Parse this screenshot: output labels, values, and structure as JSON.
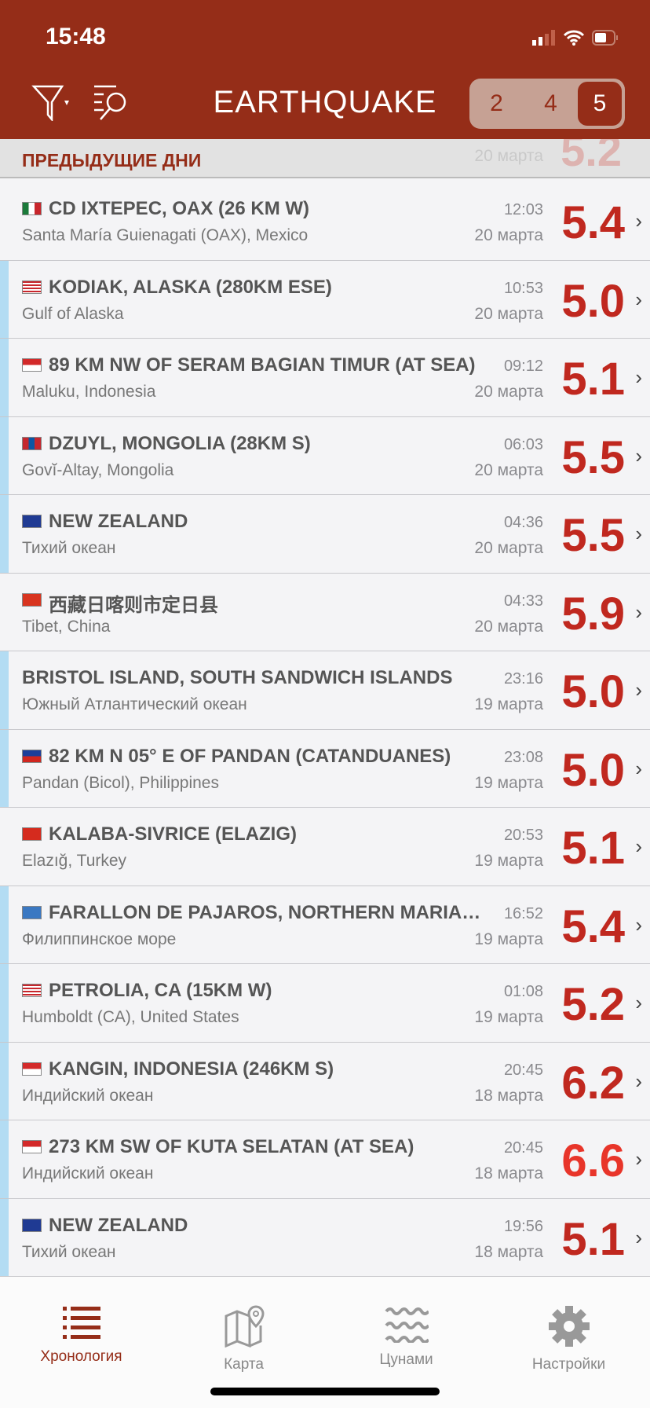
{
  "status_bar": {
    "time": "15:48"
  },
  "header": {
    "title": "EARTHQUAKE",
    "segments": [
      "2",
      "4",
      "5"
    ],
    "selected_segment": "5",
    "icons": [
      "filter-icon",
      "search-list-icon"
    ]
  },
  "section": {
    "title": "ПРЕДЫДУЩИЕ ДНИ",
    "ghost_date": "20 марта",
    "ghost_mag": "5.2"
  },
  "colors": {
    "brand": "#952d18",
    "magnitude": "#c0281f",
    "magnitude_strong": "#e8352a",
    "marker": "#b3dcf3"
  },
  "rows": [
    {
      "flag": "mx",
      "place": "CD IXTEPEC, OAX (26 KM W)",
      "region": "Santa María Guienagati (OAX), Mexico",
      "time": "12:03",
      "date": "20 марта",
      "mag": "5.4",
      "marked": false
    },
    {
      "flag": "us",
      "place": "KODIAK, ALASKA (280KM ESE)",
      "region": "Gulf of Alaska",
      "time": "10:53",
      "date": "20 марта",
      "mag": "5.0",
      "marked": true
    },
    {
      "flag": "id",
      "place": "89 KM NW OF SERAM BAGIAN TIMUR (AT SEA)",
      "region": "Maluku, Indonesia",
      "time": "09:12",
      "date": "20 марта",
      "mag": "5.1",
      "marked": true
    },
    {
      "flag": "mn",
      "place": "DZUYL, MONGOLIA (28KM S)",
      "region": "Govĭ-Altay, Mongolia",
      "time": "06:03",
      "date": "20 марта",
      "mag": "5.5",
      "marked": true
    },
    {
      "flag": "nz",
      "place": "NEW ZEALAND",
      "region": "Тихий океан",
      "time": "04:36",
      "date": "20 марта",
      "mag": "5.5",
      "marked": true
    },
    {
      "flag": "cn",
      "place": "西藏日喀则市定日县",
      "region": "Tibet, China",
      "time": "04:33",
      "date": "20 марта",
      "mag": "5.9",
      "marked": false
    },
    {
      "flag": "",
      "place": "BRISTOL ISLAND, SOUTH SANDWICH ISLANDS",
      "region": "Южный Атлантический океан",
      "time": "23:16",
      "date": "19 марта",
      "mag": "5.0",
      "marked": true
    },
    {
      "flag": "ph",
      "place": "82 KM N 05° E OF PANDAN (CATANDUANES)",
      "region": "Pandan (Bicol), Philippines",
      "time": "23:08",
      "date": "19 марта",
      "mag": "5.0",
      "marked": true
    },
    {
      "flag": "tr",
      "place": "KALABA-SIVRICE (ELAZIG)",
      "region": "Elazığ, Turkey",
      "time": "20:53",
      "date": "19 марта",
      "mag": "5.1",
      "marked": false
    },
    {
      "flag": "mp",
      "place": "FARALLON DE PAJAROS, NORTHERN MARIANA ISLANDS",
      "region": "Филиппинское море",
      "time": "16:52",
      "date": "19 марта",
      "mag": "5.4",
      "marked": true
    },
    {
      "flag": "us",
      "place": "PETROLIA, CA (15KM W)",
      "region": "Humboldt (CA), United States",
      "time": "01:08",
      "date": "19 марта",
      "mag": "5.2",
      "marked": true
    },
    {
      "flag": "id",
      "place": "KANGIN, INDONESIA (246KM S)",
      "region": "Индийский океан",
      "time": "20:45",
      "date": "18 марта",
      "mag": "6.2",
      "marked": true
    },
    {
      "flag": "id",
      "place": "273 KM SW OF KUTA SELATAN (AT SEA)",
      "region": "Индийский океан",
      "time": "20:45",
      "date": "18 марта",
      "mag": "6.6",
      "marked": true
    },
    {
      "flag": "nz",
      "place": "NEW ZEALAND",
      "region": "Тихий океан",
      "time": "19:56",
      "date": "18 марта",
      "mag": "5.1",
      "marked": true
    }
  ],
  "tabs": [
    {
      "label": "Хронология",
      "icon": "list-icon",
      "active": true
    },
    {
      "label": "Карта",
      "icon": "map-icon",
      "active": false
    },
    {
      "label": "Цунами",
      "icon": "waves-icon",
      "active": false
    },
    {
      "label": "Настройки",
      "icon": "gear-icon",
      "active": false
    }
  ]
}
